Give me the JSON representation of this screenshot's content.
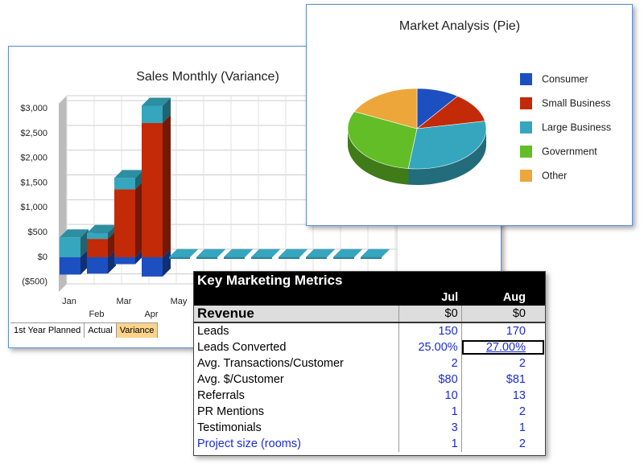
{
  "chart_data": [
    {
      "type": "bar3d",
      "title": "Sales Monthly (Variance)",
      "categories": [
        "Jan",
        "Feb",
        "Mar",
        "Apr",
        "May",
        null,
        null,
        null,
        null,
        null,
        null,
        null
      ],
      "series": [
        {
          "color": "#1c4fc0",
          "values": [
            -350,
            -330,
            -140,
            -390,
            0,
            0,
            0,
            0,
            0,
            0,
            0,
            0
          ]
        },
        {
          "color": "#c22a08",
          "values": [
            0,
            370,
            1370,
            2710,
            0,
            0,
            0,
            0,
            0,
            0,
            0,
            0
          ]
        },
        {
          "color": "#35a6bd",
          "values": [
            400,
            120,
            230,
            350,
            0,
            0,
            0,
            0,
            0,
            0,
            0,
            0
          ]
        }
      ],
      "ylim": [
        -700,
        3100
      ],
      "yticks": [
        {
          "value": -500,
          "label": "($500)"
        },
        {
          "value": 0,
          "label": "$0"
        },
        {
          "value": 500,
          "label": "$500"
        },
        {
          "value": 1000,
          "label": "$1,000"
        },
        {
          "value": 1500,
          "label": "$1,500"
        },
        {
          "value": 2000,
          "label": "$2,000"
        },
        {
          "value": 2500,
          "label": "$2,500"
        },
        {
          "value": 3000,
          "label": "$3,000"
        }
      ],
      "grid": true
    },
    {
      "type": "pie",
      "title": "Market Analysis (Pie)",
      "categories": [
        "Consumer",
        "Small Business",
        "Large Business",
        "Government",
        "Other"
      ],
      "values": [
        10,
        12,
        30,
        30,
        18
      ],
      "colors": [
        "#1c4fc0",
        "#c22a08",
        "#35a6bd",
        "#62bd27",
        "#eca63a"
      ],
      "legend": "right"
    }
  ],
  "tabs": [
    "1st Year Planned",
    "Actual",
    "Variance"
  ],
  "table": {
    "title": "Key Marketing Metrics",
    "columns": [
      "Jul",
      "Aug"
    ],
    "revenue": [
      "Revenue",
      "$0",
      "$0"
    ],
    "rows": [
      [
        "Leads",
        "150",
        "170"
      ],
      [
        "Leads Converted",
        "25.00%",
        "27.00%"
      ],
      [
        "Avg. Transactions/Customer",
        "2",
        "2"
      ],
      [
        "Avg. $/Customer",
        "$80",
        "$81"
      ],
      [
        "Referrals",
        "10",
        "13"
      ],
      [
        "PR Mentions",
        "1",
        "2"
      ],
      [
        "Testimonials",
        "3",
        "1"
      ],
      [
        "Project size (rooms)",
        "1",
        "2"
      ]
    ]
  }
}
